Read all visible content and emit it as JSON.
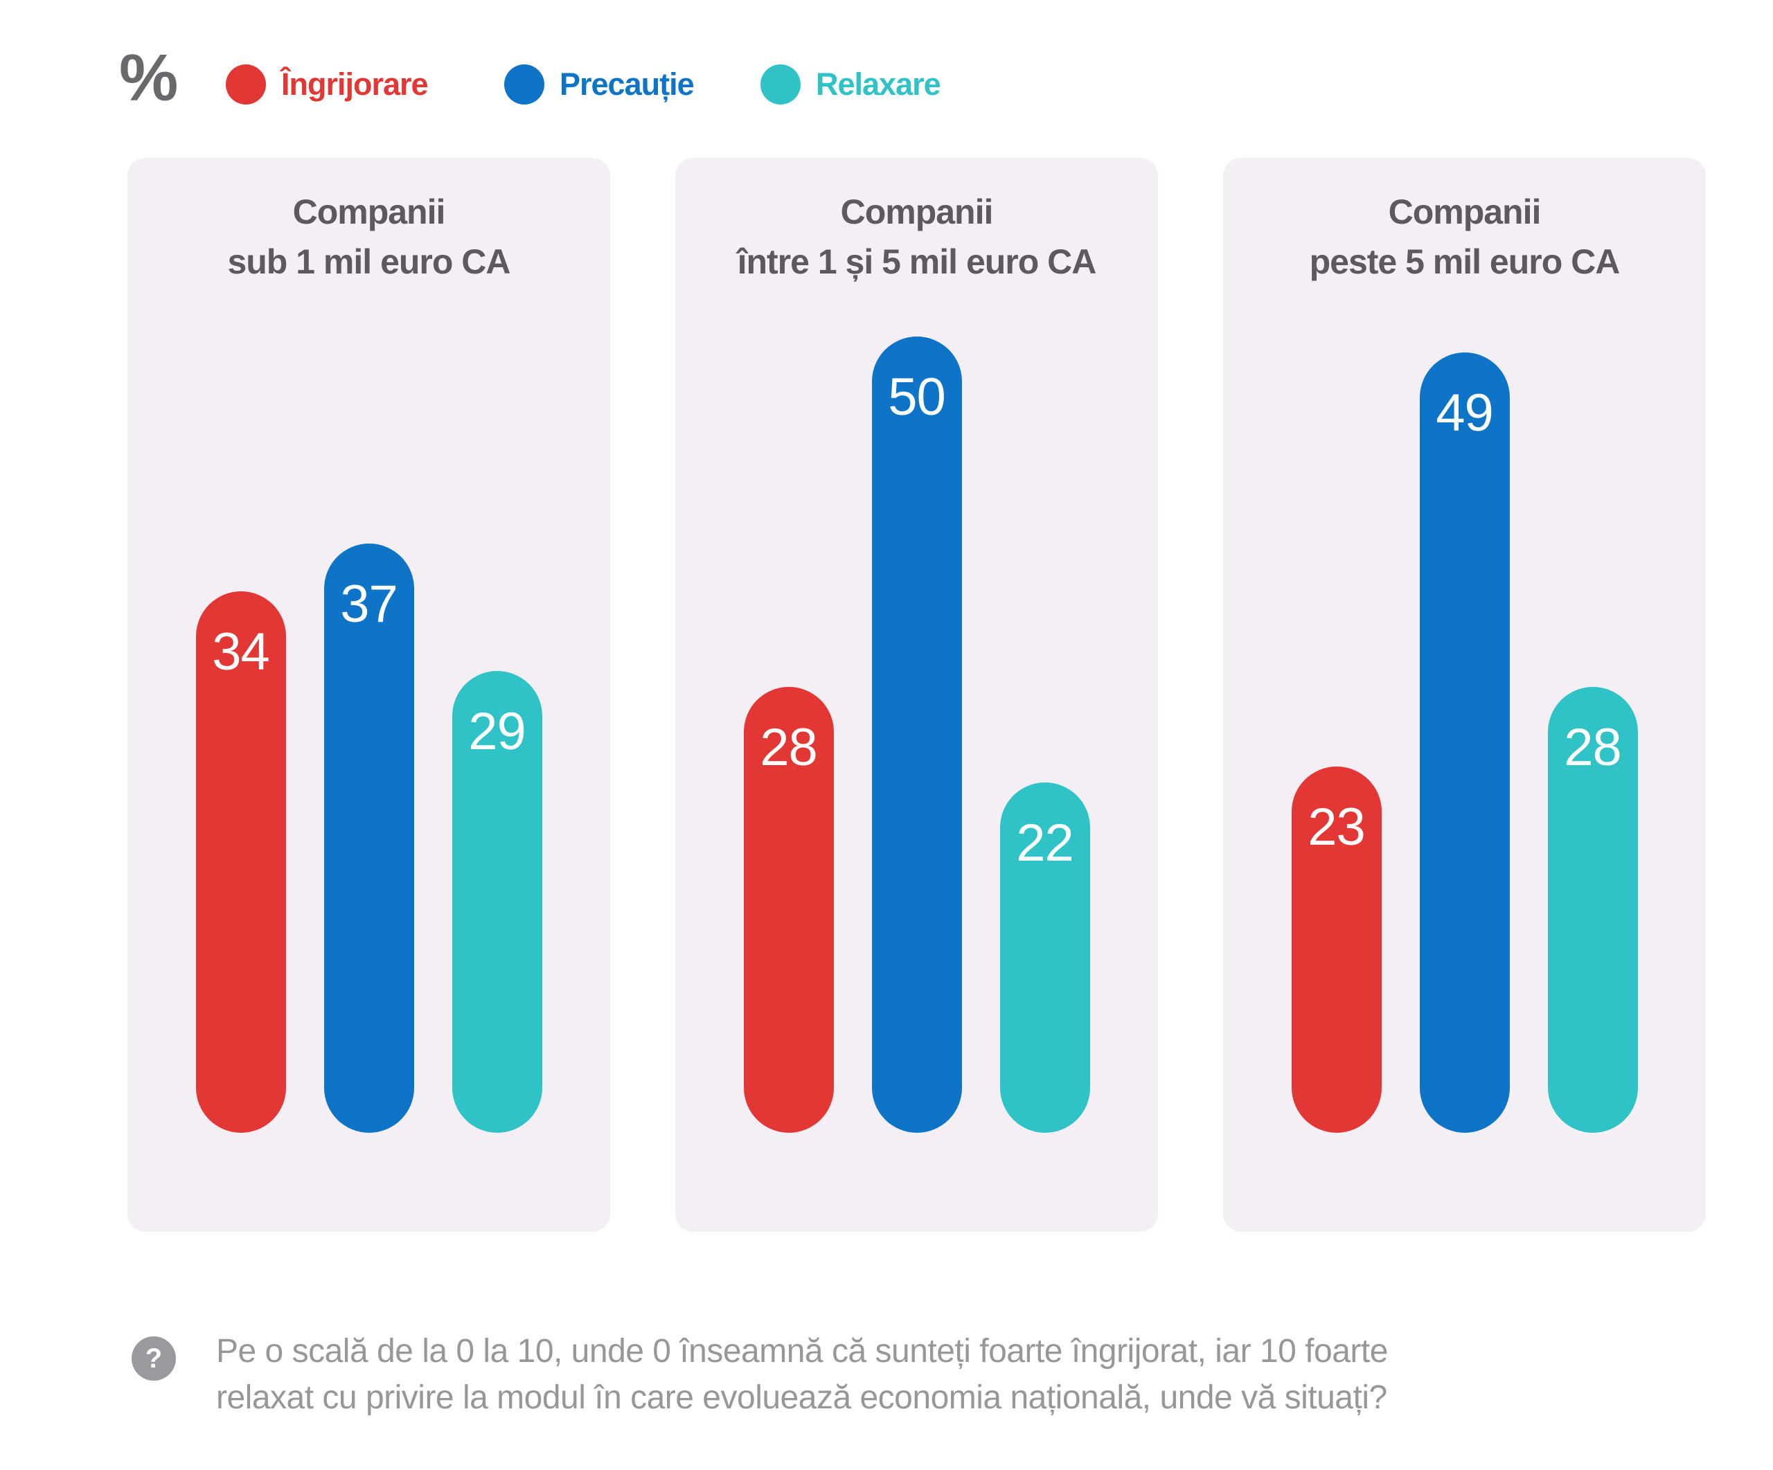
{
  "unit_label": "%",
  "colors": {
    "ingrijorare": "#e23734",
    "precautie": "#0d74c7",
    "relaxare": "#2fc3c7",
    "panel_background": "#f3eff4",
    "title_text": "#5e595e",
    "footnote_text": "#97969b",
    "footnote_icon": "#9a999d",
    "bar_value_text": "#ffffff"
  },
  "legend": [
    {
      "label": "Îngrijorare",
      "color": "#e23734"
    },
    {
      "label": "Precauție",
      "color": "#0d74c7"
    },
    {
      "label": "Relaxare",
      "color": "#2fc3c7"
    }
  ],
  "panels": [
    {
      "title_line1": "Companii",
      "title_line2": "sub 1 mil euro CA",
      "values": [
        34,
        37,
        29
      ]
    },
    {
      "title_line1": "Companii",
      "title_line2": "între 1 și 5 mil euro CA",
      "values": [
        28,
        50,
        22
      ]
    },
    {
      "title_line1": "Companii",
      "title_line2": "peste 5 mil euro CA",
      "values": [
        23,
        49,
        28
      ]
    }
  ],
  "footnote": {
    "icon_glyph": "?",
    "line1": "Pe o scală de la 0 la 10, unde 0 înseamnă că sunteți foarte îngrijorat, iar 10 foarte",
    "line2": "relaxat cu privire la modul în care evoluează economia națională, unde vă situați?"
  },
  "chart_data": {
    "type": "bar",
    "unit": "%",
    "categories": [
      "Companii sub 1 mil euro CA",
      "Companii între 1 și 5 mil euro CA",
      "Companii peste 5 mil euro CA"
    ],
    "series": [
      {
        "name": "Îngrijorare",
        "color": "#e23734",
        "values": [
          34,
          28,
          23
        ]
      },
      {
        "name": "Precauție",
        "color": "#0d74c7",
        "values": [
          37,
          50,
          49
        ]
      },
      {
        "name": "Relaxare",
        "color": "#2fc3c7",
        "values": [
          29,
          22,
          28
        ]
      }
    ],
    "value_labels": true,
    "grid": false,
    "axes_shown": false,
    "legend_position": "top",
    "ylim": [
      0,
      55
    ],
    "question": "Pe o scală de la 0 la 10, unde 0 înseamnă că sunteți foarte îngrijorat, iar 10 foarte relaxat cu privire la modul în care evoluează economia națională, unde vă situați?"
  }
}
